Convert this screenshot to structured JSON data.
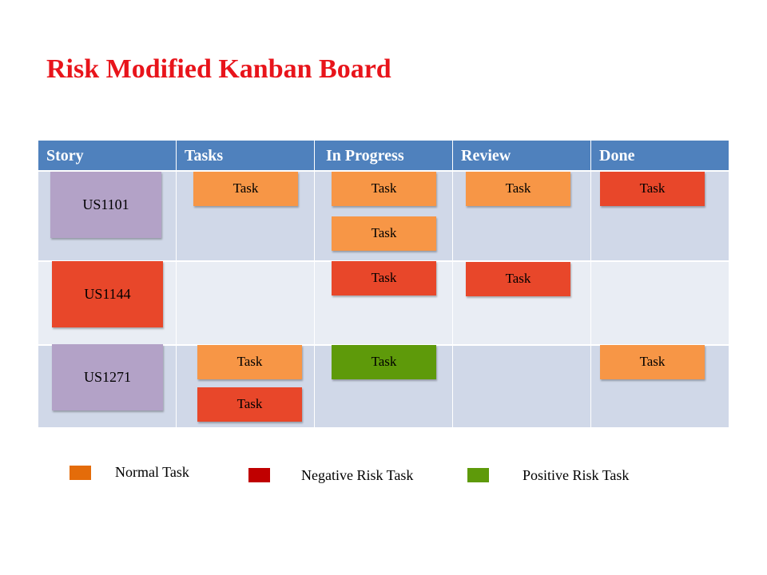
{
  "title": "Risk Modified Kanban Board",
  "columns": [
    "Story",
    "Tasks",
    "In Progress",
    "Review",
    "Done"
  ],
  "colors": {
    "header": "#4f81bd",
    "row_dark": "#d0d8e8",
    "row_light": "#e9edf4",
    "story_normal": "#b3a2c7",
    "normal_task": "#f79646",
    "negative_risk_task": "#e8472a",
    "positive_risk_task": "#5e9a0a"
  },
  "stories": [
    {
      "id": "US1101",
      "type": "normal",
      "tasks": {
        "Tasks": [
          "normal"
        ],
        "In Progress": [
          "normal",
          "normal"
        ],
        "Review": [
          "normal"
        ],
        "Done": [
          "negative"
        ]
      }
    },
    {
      "id": "US1144",
      "type": "negative",
      "tasks": {
        "Tasks": [],
        "In Progress": [
          "negative"
        ],
        "Review": [
          "negative"
        ],
        "Done": []
      }
    },
    {
      "id": "US1271",
      "type": "normal",
      "tasks": {
        "Tasks": [
          "normal",
          "negative"
        ],
        "In Progress": [
          "positive"
        ],
        "Review": [],
        "Done": [
          "normal"
        ]
      }
    }
  ],
  "task_label": "Task",
  "legend": [
    {
      "label": "Normal Task",
      "color": "#e46c0a"
    },
    {
      "label": "Negative Risk Task",
      "color": "#c00000"
    },
    {
      "label": "Positive Risk Task",
      "color": "#5e9a0a"
    }
  ]
}
